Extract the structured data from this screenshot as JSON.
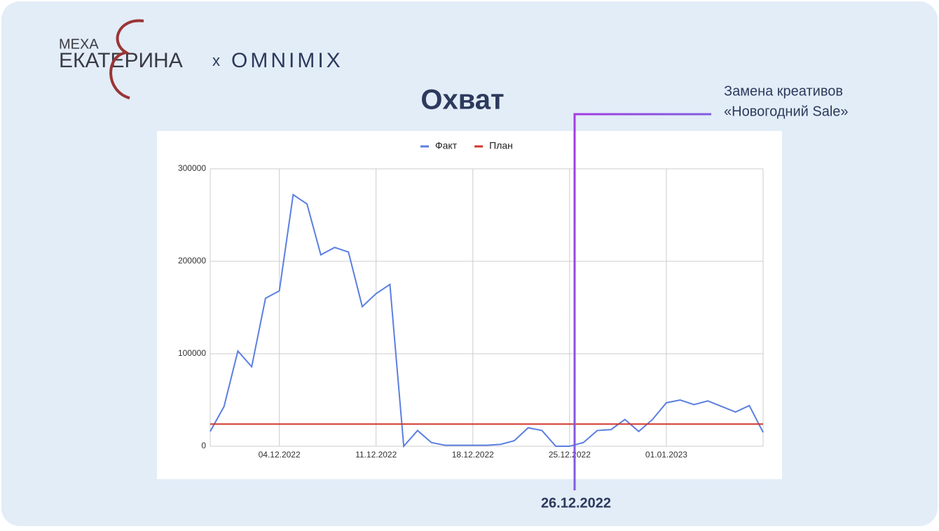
{
  "logo": {
    "top": "МЕХА",
    "bottom": "ЕКАТЕРИНА",
    "joiner": "x",
    "partner": "OMNIMIX"
  },
  "chart_data": {
    "type": "line",
    "title": "Охват",
    "categories": [
      "",
      null,
      null,
      null,
      null,
      "04.12.2022",
      null,
      null,
      null,
      null,
      null,
      null,
      "11.12.2022",
      null,
      null,
      null,
      null,
      null,
      null,
      "18.12.2022",
      null,
      null,
      null,
      null,
      null,
      null,
      "25.12.2022",
      null,
      null,
      null,
      null,
      null,
      null,
      "01.01.2023",
      null,
      null,
      null,
      null,
      null,
      null,
      null
    ],
    "series": [
      {
        "name": "Факт",
        "color": "#5b7fe0",
        "values": [
          16000,
          43000,
          103000,
          86000,
          160000,
          168000,
          272000,
          262000,
          207000,
          215000,
          210000,
          151000,
          165000,
          175000,
          0,
          17000,
          4000,
          1000,
          1000,
          1000,
          1000,
          2000,
          6000,
          20000,
          17000,
          0,
          0,
          4000,
          17000,
          18000,
          29000,
          16000,
          29000,
          47000,
          50000,
          45000,
          49000,
          43000,
          37000,
          44000,
          15000
        ]
      },
      {
        "name": "План",
        "color": "#d0352b",
        "values": [
          24000,
          24000,
          24000,
          24000,
          24000,
          24000,
          24000,
          24000,
          24000,
          24000,
          24000,
          24000,
          24000,
          24000,
          24000,
          24000,
          24000,
          24000,
          24000,
          24000,
          24000,
          24000,
          24000,
          24000,
          24000,
          24000,
          24000,
          24000,
          24000,
          24000,
          24000,
          24000,
          24000,
          24000,
          24000,
          24000,
          24000,
          24000,
          24000,
          24000,
          24000
        ]
      }
    ],
    "ylim": [
      0,
      300000
    ],
    "yticks": [
      0,
      100000,
      200000,
      300000
    ],
    "grid": true,
    "legend": "top",
    "annotation": {
      "lines": [
        "Замена креативов",
        "«Новогодний Sale»"
      ],
      "date": "26.12.2022",
      "category_index": 27
    }
  }
}
